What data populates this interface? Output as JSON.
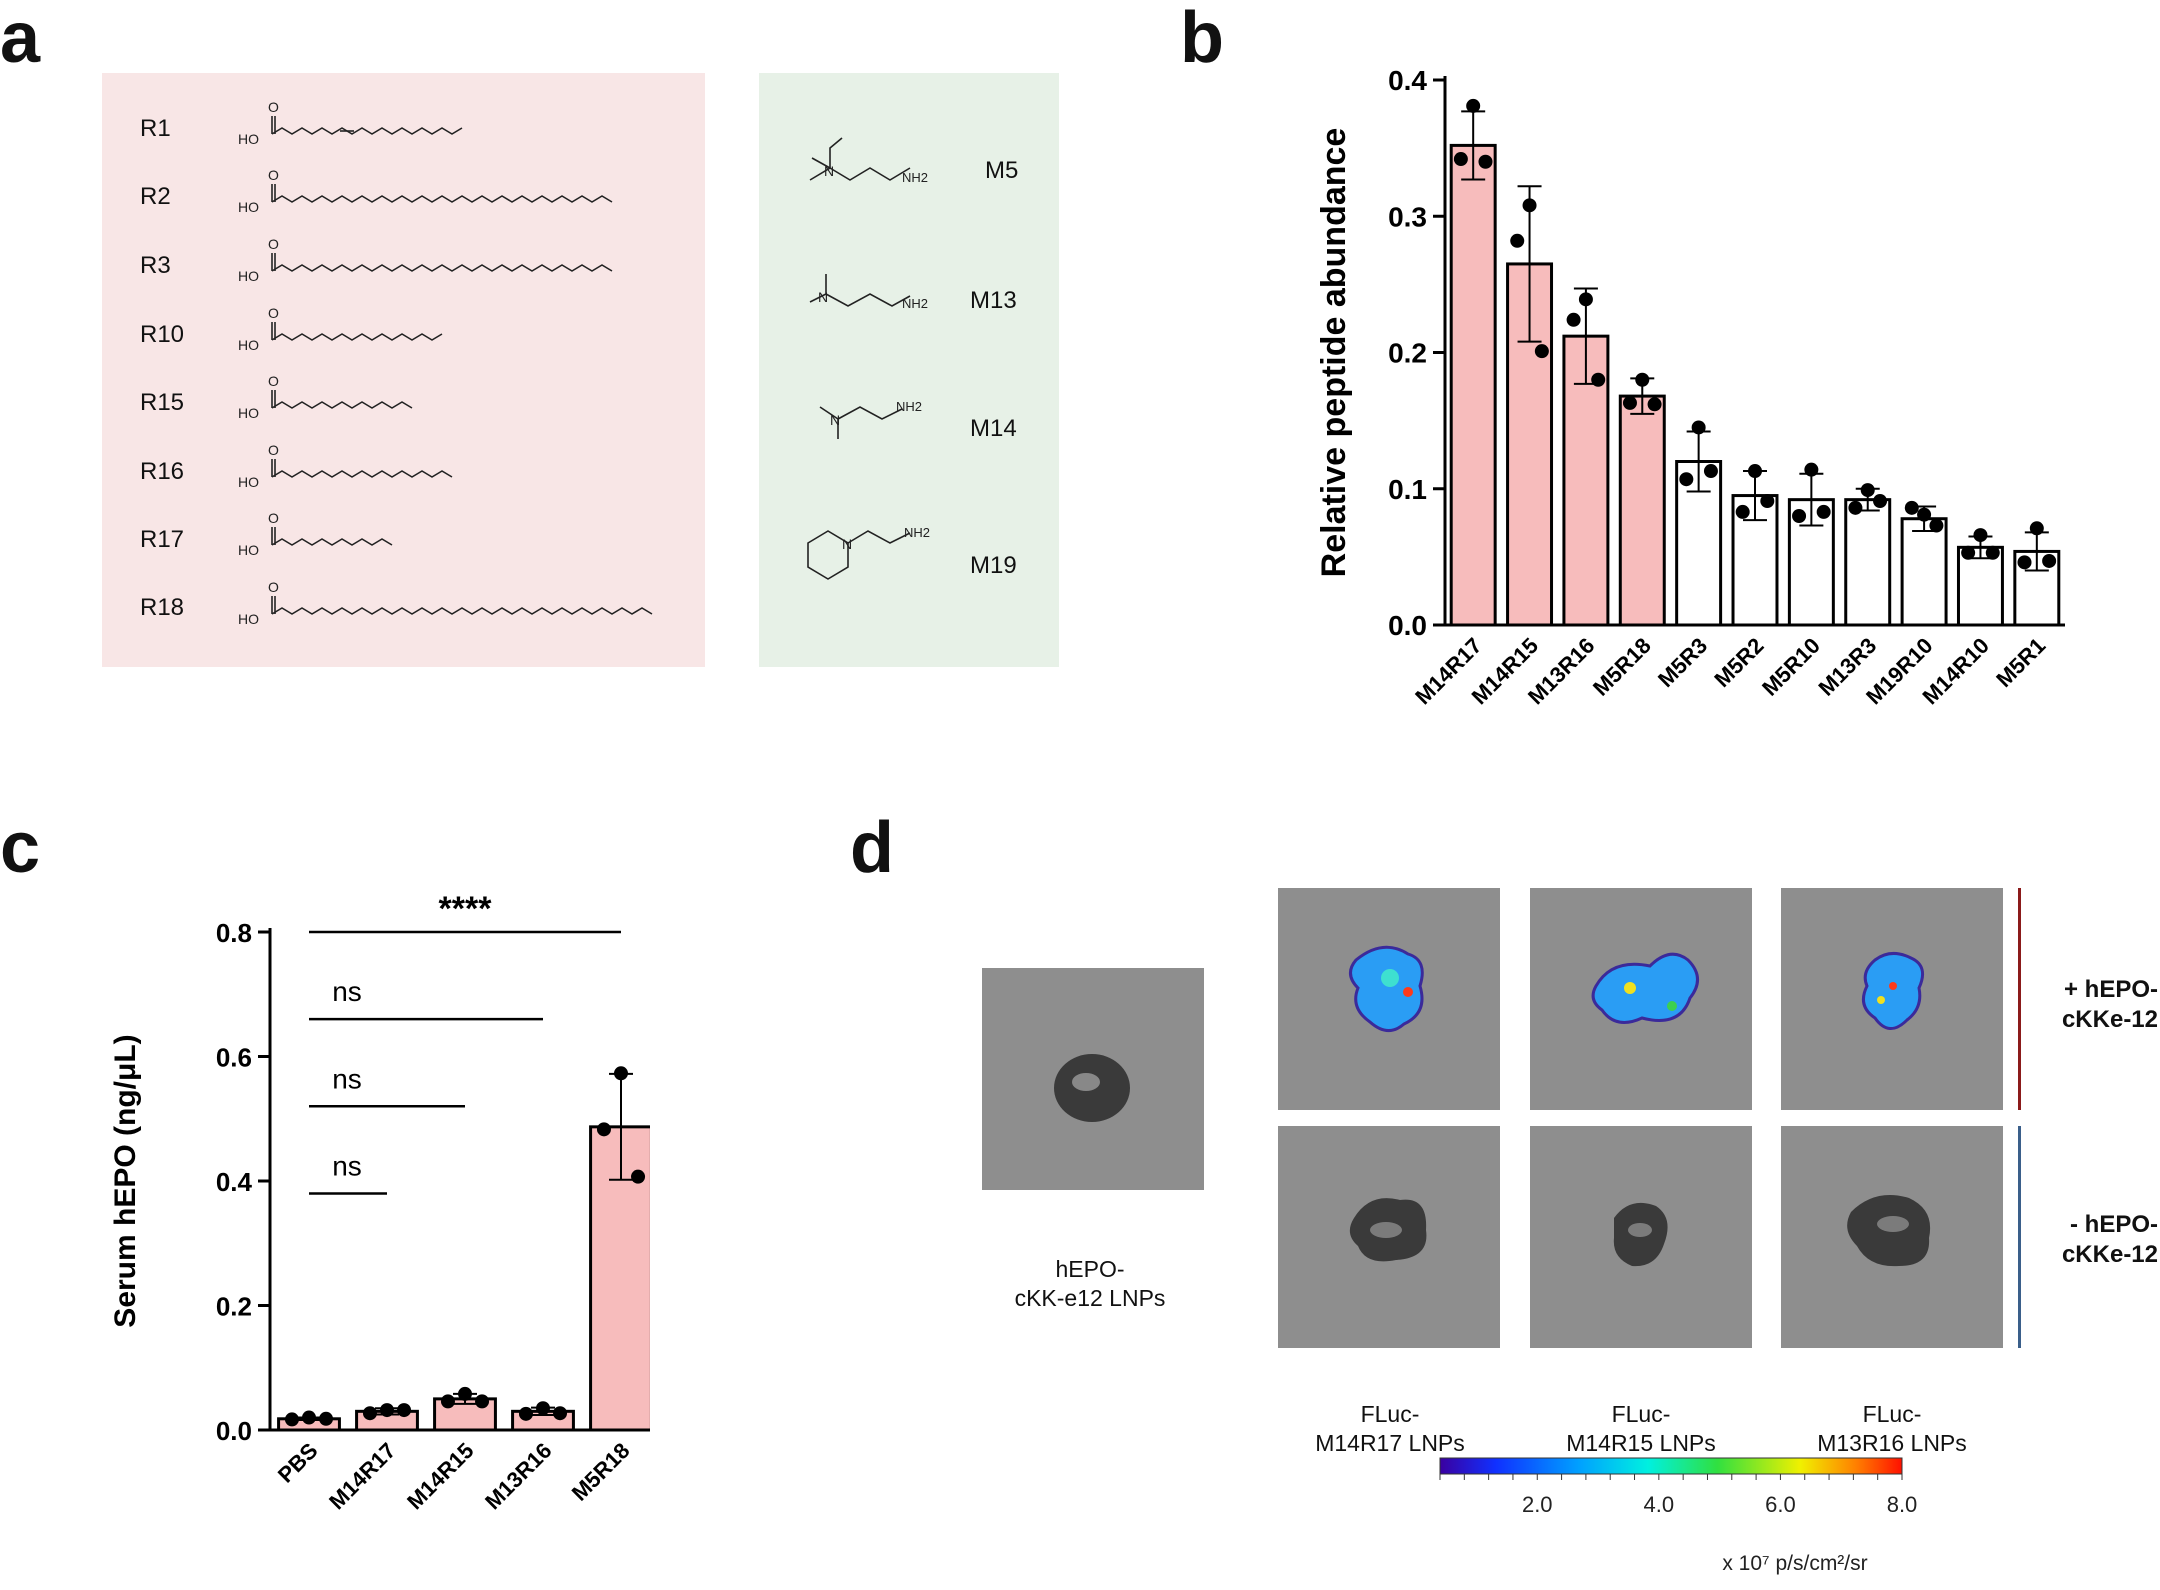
{
  "panel_a": {
    "letter": "a",
    "lipid_tails": [
      {
        "label": "R1",
        "smiles_like": "HO–C(=O)–CH2CH2CH=CH(CH2)5CH3",
        "ho": "HO",
        "o": "O"
      },
      {
        "label": "R2",
        "smiles_like": "long monounsaturated acid",
        "ho": "HO",
        "o": "O"
      },
      {
        "label": "R3",
        "smiles_like": "diunsaturated acid",
        "ho": "HO",
        "o": "O"
      },
      {
        "label": "R10",
        "smiles_like": "monounsaturated acid",
        "ho": "HO",
        "o": "O"
      },
      {
        "label": "R15",
        "smiles_like": "octanoic acid",
        "ho": "HO",
        "o": "O"
      },
      {
        "label": "R16",
        "smiles_like": "decanoic acid",
        "ho": "HO",
        "o": "O"
      },
      {
        "label": "R17",
        "smiles_like": "hexenoic acid",
        "ho": "HO",
        "o": "O"
      },
      {
        "label": "R18",
        "smiles_like": "polyunsaturated acid",
        "ho": "HO",
        "o": "O"
      }
    ],
    "amines": [
      {
        "label": "M5",
        "n": "N",
        "nh2": "NH2"
      },
      {
        "label": "M13",
        "n": "N",
        "nh2": "NH2"
      },
      {
        "label": "M14",
        "n": "N",
        "nh2": "NH2"
      },
      {
        "label": "M19",
        "n": "N",
        "nh2": "NH2"
      }
    ],
    "colors": {
      "tail_bg": "#f8e6e6",
      "amine_bg": "#e7f1e7"
    }
  },
  "chart_data": [
    {
      "panel": "b",
      "type": "bar",
      "ylabel": "Relative peptide abundance",
      "ylim": [
        0,
        0.4
      ],
      "yticks": [
        "0.0",
        "0.1",
        "0.2",
        "0.3",
        "0.4"
      ],
      "categories": [
        "M14R17",
        "M14R15",
        "M13R16",
        "M5R18",
        "M5R3",
        "M5R2",
        "M5R10",
        "M13R3",
        "M19R10",
        "M14R10",
        "M5R1"
      ],
      "values": [
        0.352,
        0.265,
        0.212,
        0.168,
        0.12,
        0.095,
        0.092,
        0.092,
        0.078,
        0.057,
        0.054
      ],
      "errors": [
        0.025,
        0.057,
        0.035,
        0.013,
        0.022,
        0.018,
        0.019,
        0.008,
        0.009,
        0.008,
        0.014
      ],
      "points": [
        [
          0.381,
          0.342,
          0.34
        ],
        [
          0.308,
          0.282,
          0.201
        ],
        [
          0.239,
          0.224,
          0.18
        ],
        [
          0.18,
          0.163,
          0.162
        ],
        [
          0.145,
          0.107,
          0.113
        ],
        [
          0.113,
          0.083,
          0.091
        ],
        [
          0.114,
          0.08,
          0.083
        ],
        [
          0.099,
          0.086,
          0.091
        ],
        [
          0.081,
          0.086,
          0.073
        ],
        [
          0.066,
          0.053,
          0.053
        ],
        [
          0.071,
          0.046,
          0.047
        ]
      ],
      "highlighted": [
        true,
        true,
        true,
        true,
        false,
        false,
        false,
        false,
        false,
        false,
        false
      ],
      "colors": {
        "highlight": "#f7bcbc",
        "plain": "#ffffff"
      }
    },
    {
      "panel": "c",
      "type": "bar",
      "ylabel": "Serum hEPO (ng/μL)",
      "ylim": [
        0,
        0.8
      ],
      "yticks": [
        "0.0",
        "0.2",
        "0.4",
        "0.6",
        "0.8"
      ],
      "categories": [
        "PBS",
        "M14R17",
        "M14R15",
        "M13R16",
        "M5R18"
      ],
      "values": [
        0.018,
        0.03,
        0.05,
        0.03,
        0.487
      ],
      "errors": [
        0.002,
        0.005,
        0.008,
        0.006,
        0.085
      ],
      "points": [
        [
          0.02,
          0.017,
          0.018
        ],
        [
          0.032,
          0.027,
          0.032
        ],
        [
          0.058,
          0.046,
          0.046
        ],
        [
          0.035,
          0.026,
          0.027
        ],
        [
          0.573,
          0.483,
          0.407
        ]
      ],
      "highlighted": [
        true,
        true,
        true,
        true,
        true
      ],
      "significance": [
        {
          "from": "PBS",
          "to": "M14R17",
          "label": "ns"
        },
        {
          "from": "PBS",
          "to": "M14R15",
          "label": "ns"
        },
        {
          "from": "PBS",
          "to": "M13R16",
          "label": "ns"
        },
        {
          "from": "PBS",
          "to": "M5R18",
          "label": "****"
        }
      ]
    }
  ],
  "panel_b": {
    "letter": "b"
  },
  "panel_c": {
    "letter": "c"
  },
  "panel_d": {
    "letter": "d",
    "control_caption_line1": "hEPO-",
    "control_caption_line2": "cKK-e12 LNPs",
    "captions": [
      {
        "line1": "FLuc-",
        "line2": "M14R17 LNPs"
      },
      {
        "line1": "FLuc-",
        "line2": "M14R15 LNPs"
      },
      {
        "line1": "FLuc-",
        "line2": "M13R16 LNPs"
      }
    ],
    "row_labels": [
      {
        "line1": "+ hEPO-",
        "line2": "cKKe-12"
      },
      {
        "line1": "- hEPO-",
        "line2": "cKKe-12"
      }
    ],
    "colorbar": {
      "ticks": [
        "2.0",
        "4.0",
        "6.0",
        "8.0"
      ],
      "unit": "x 10⁷ p/s/cm²/sr",
      "min": 0.4,
      "max": 8.0
    },
    "colors": {
      "plus_line": "#8b1a1a",
      "minus_line": "#3a5f8a"
    }
  }
}
